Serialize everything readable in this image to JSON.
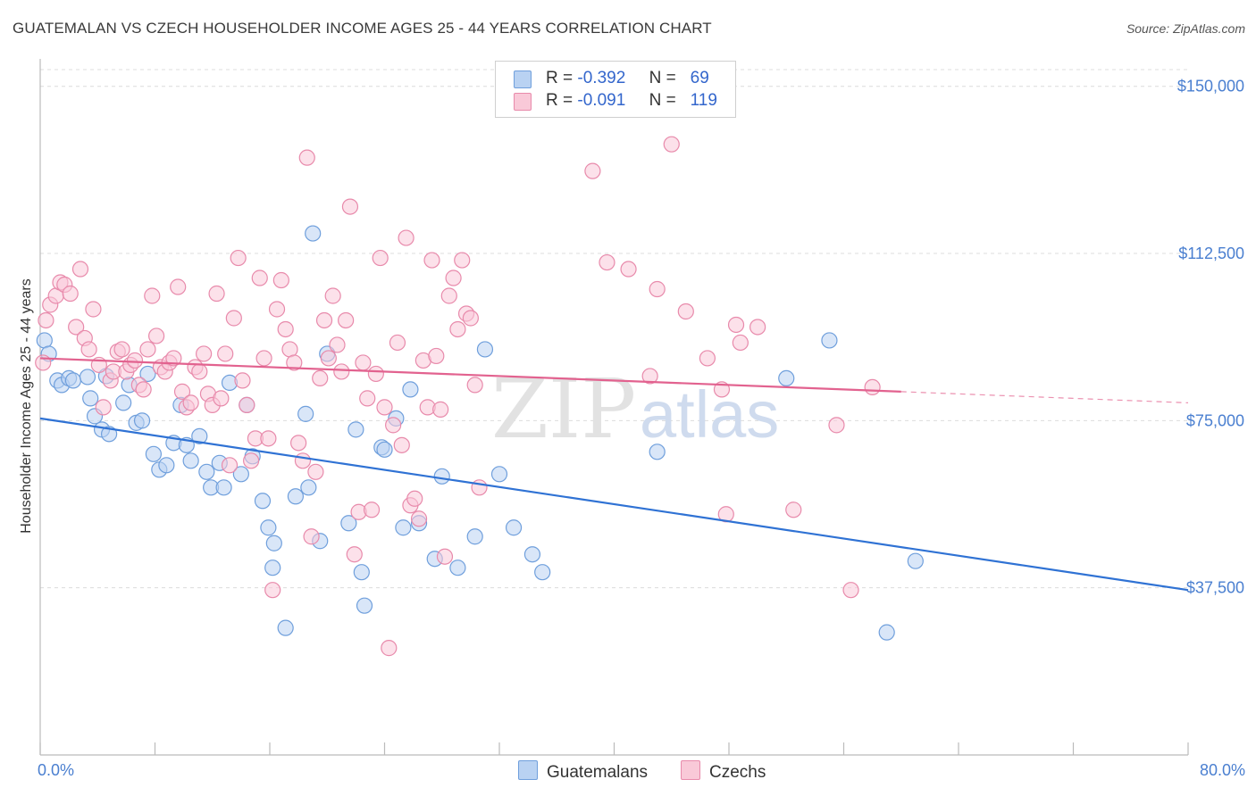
{
  "title": "GUATEMALAN VS CZECH HOUSEHOLDER INCOME AGES 25 - 44 YEARS CORRELATION CHART",
  "source": "Source: ZipAtlas.com",
  "watermark": {
    "zip": "ZIP",
    "atlas": "atlas"
  },
  "legend": {
    "rows": [
      {
        "r_label": "R =",
        "r_value": "-0.392",
        "n_label": "N =",
        "n_value": "69",
        "color": "#b9d2f2",
        "border": "#6f9fdc"
      },
      {
        "r_label": "R =",
        "r_value": "-0.091",
        "n_label": "N =",
        "n_value": "119",
        "color": "#f9c9d8",
        "border": "#e88aab"
      }
    ]
  },
  "bottom_legend": [
    {
      "label": "Guatemalans",
      "color": "#b9d2f2",
      "border": "#6f9fdc"
    },
    {
      "label": "Czechs",
      "color": "#f9c9d8",
      "border": "#e88aab"
    }
  ],
  "chart_data": {
    "type": "scatter",
    "title": "GUATEMALAN VS CZECH HOUSEHOLDER INCOME AGES 25 - 44 YEARS CORRELATION CHART",
    "xlabel": "",
    "ylabel": "Householder Income Ages 25 - 44 years",
    "xlim": [
      0,
      80
    ],
    "ylim": [
      0,
      153750
    ],
    "x_tick_labels": [
      {
        "value": 0,
        "label": "0.0%"
      },
      {
        "value": 80,
        "label": "80.0%"
      }
    ],
    "y_ticks": [
      {
        "value": 37500,
        "label": "$37,500"
      },
      {
        "value": 75000,
        "label": "$75,000"
      },
      {
        "value": 112500,
        "label": "$112,500"
      },
      {
        "value": 150000,
        "label": "$150,000"
      }
    ],
    "grid": true,
    "legend_position": "top-center",
    "series": [
      {
        "name": "Guatemalans",
        "color": "#6f9fdc",
        "fill": "#b9d2f2",
        "line_color": "#2f72d4",
        "trend": {
          "x": [
            0,
            80
          ],
          "y": [
            75500,
            37000
          ]
        },
        "points": [
          [
            0.3,
            93000
          ],
          [
            0.6,
            90000
          ],
          [
            1.2,
            84000
          ],
          [
            1.5,
            83000
          ],
          [
            2.0,
            84500
          ],
          [
            2.3,
            84000
          ],
          [
            3.3,
            84800
          ],
          [
            3.5,
            80000
          ],
          [
            3.8,
            76000
          ],
          [
            4.3,
            73000
          ],
          [
            4.8,
            72000
          ],
          [
            4.6,
            85000
          ],
          [
            5.8,
            79000
          ],
          [
            6.2,
            83000
          ],
          [
            6.7,
            74500
          ],
          [
            7.1,
            75000
          ],
          [
            7.5,
            85500
          ],
          [
            7.9,
            67500
          ],
          [
            8.3,
            64000
          ],
          [
            8.8,
            65000
          ],
          [
            9.3,
            70000
          ],
          [
            9.8,
            78500
          ],
          [
            10.2,
            69500
          ],
          [
            10.5,
            66000
          ],
          [
            11.1,
            71500
          ],
          [
            11.6,
            63500
          ],
          [
            11.9,
            60000
          ],
          [
            12.5,
            65500
          ],
          [
            12.8,
            60000
          ],
          [
            13.2,
            83500
          ],
          [
            14.0,
            63000
          ],
          [
            14.4,
            78500
          ],
          [
            14.8,
            67000
          ],
          [
            15.5,
            57000
          ],
          [
            15.9,
            51000
          ],
          [
            16.3,
            47500
          ],
          [
            16.2,
            42000
          ],
          [
            17.1,
            28500
          ],
          [
            17.8,
            58000
          ],
          [
            18.7,
            60000
          ],
          [
            18.5,
            76500
          ],
          [
            19.0,
            117000
          ],
          [
            19.5,
            48000
          ],
          [
            20.0,
            90000
          ],
          [
            21.5,
            52000
          ],
          [
            22.0,
            73000
          ],
          [
            22.4,
            41000
          ],
          [
            22.6,
            33500
          ],
          [
            23.8,
            69000
          ],
          [
            24.0,
            68500
          ],
          [
            24.8,
            75500
          ],
          [
            25.3,
            51000
          ],
          [
            25.8,
            82000
          ],
          [
            26.4,
            52000
          ],
          [
            27.5,
            44000
          ],
          [
            28.0,
            62500
          ],
          [
            29.1,
            42000
          ],
          [
            30.3,
            49000
          ],
          [
            31.0,
            91000
          ],
          [
            32.0,
            63000
          ],
          [
            33.0,
            51000
          ],
          [
            34.3,
            45000
          ],
          [
            35.0,
            41000
          ],
          [
            43.0,
            68000
          ],
          [
            52.0,
            84500
          ],
          [
            55.0,
            93000
          ],
          [
            59.0,
            27500
          ],
          [
            61.0,
            43500
          ]
        ]
      },
      {
        "name": "Czechs",
        "color": "#e88aab",
        "fill": "#f9c9d8",
        "line_color": "#e2628f",
        "trend": {
          "x": [
            0,
            60
          ],
          "y": [
            89000,
            81500
          ]
        },
        "trend_dashed": {
          "x": [
            60,
            80
          ],
          "y": [
            81500,
            79000
          ]
        },
        "points": [
          [
            0.2,
            88000
          ],
          [
            0.4,
            97500
          ],
          [
            0.7,
            101000
          ],
          [
            1.1,
            103000
          ],
          [
            1.4,
            106000
          ],
          [
            1.7,
            105500
          ],
          [
            2.1,
            103500
          ],
          [
            2.5,
            96000
          ],
          [
            2.8,
            109000
          ],
          [
            3.1,
            93500
          ],
          [
            3.4,
            91000
          ],
          [
            3.7,
            100000
          ],
          [
            4.1,
            87500
          ],
          [
            4.4,
            78000
          ],
          [
            4.9,
            84000
          ],
          [
            5.1,
            86000
          ],
          [
            5.4,
            90500
          ],
          [
            5.7,
            91000
          ],
          [
            6.0,
            86000
          ],
          [
            6.3,
            87500
          ],
          [
            6.6,
            88500
          ],
          [
            6.9,
            83000
          ],
          [
            7.2,
            82000
          ],
          [
            7.5,
            91000
          ],
          [
            7.8,
            103000
          ],
          [
            8.1,
            94000
          ],
          [
            8.4,
            87000
          ],
          [
            8.7,
            86000
          ],
          [
            9.0,
            88000
          ],
          [
            9.3,
            89000
          ],
          [
            9.6,
            105000
          ],
          [
            9.9,
            81500
          ],
          [
            10.2,
            78000
          ],
          [
            10.5,
            79000
          ],
          [
            10.8,
            87000
          ],
          [
            11.1,
            86000
          ],
          [
            11.4,
            90000
          ],
          [
            11.7,
            81000
          ],
          [
            12.0,
            78500
          ],
          [
            12.3,
            103500
          ],
          [
            12.6,
            80000
          ],
          [
            12.9,
            90000
          ],
          [
            13.2,
            65000
          ],
          [
            13.5,
            98000
          ],
          [
            13.8,
            111500
          ],
          [
            14.1,
            84000
          ],
          [
            14.4,
            78500
          ],
          [
            14.7,
            66000
          ],
          [
            15.0,
            71000
          ],
          [
            15.3,
            107000
          ],
          [
            15.6,
            89000
          ],
          [
            15.9,
            71000
          ],
          [
            16.2,
            37000
          ],
          [
            16.5,
            100000
          ],
          [
            16.8,
            106500
          ],
          [
            17.1,
            95500
          ],
          [
            17.4,
            91000
          ],
          [
            17.7,
            88000
          ],
          [
            18.0,
            70000
          ],
          [
            18.3,
            66000
          ],
          [
            18.6,
            134000
          ],
          [
            18.9,
            49000
          ],
          [
            19.2,
            63500
          ],
          [
            19.5,
            84500
          ],
          [
            19.8,
            97500
          ],
          [
            20.1,
            89000
          ],
          [
            20.4,
            103000
          ],
          [
            20.7,
            92000
          ],
          [
            21.0,
            86000
          ],
          [
            21.3,
            97500
          ],
          [
            21.6,
            123000
          ],
          [
            21.9,
            45000
          ],
          [
            22.2,
            54500
          ],
          [
            22.5,
            88000
          ],
          [
            22.8,
            80000
          ],
          [
            23.1,
            55000
          ],
          [
            23.4,
            85500
          ],
          [
            23.7,
            111500
          ],
          [
            24.0,
            78000
          ],
          [
            24.3,
            24000
          ],
          [
            24.6,
            74000
          ],
          [
            24.9,
            92500
          ],
          [
            25.2,
            69500
          ],
          [
            25.5,
            116000
          ],
          [
            25.8,
            56000
          ],
          [
            26.1,
            57500
          ],
          [
            26.4,
            53000
          ],
          [
            26.7,
            88500
          ],
          [
            27.0,
            78000
          ],
          [
            27.3,
            111000
          ],
          [
            27.6,
            89500
          ],
          [
            27.9,
            77500
          ],
          [
            28.2,
            44500
          ],
          [
            28.5,
            103000
          ],
          [
            28.8,
            107000
          ],
          [
            29.1,
            95500
          ],
          [
            29.4,
            111000
          ],
          [
            29.7,
            99000
          ],
          [
            30.0,
            98000
          ],
          [
            30.3,
            83000
          ],
          [
            30.6,
            60000
          ],
          [
            38.5,
            131000
          ],
          [
            39.5,
            110500
          ],
          [
            41.0,
            109000
          ],
          [
            42.5,
            85000
          ],
          [
            43.0,
            104500
          ],
          [
            44.0,
            137000
          ],
          [
            45.0,
            99500
          ],
          [
            46.5,
            89000
          ],
          [
            47.5,
            82000
          ],
          [
            47.8,
            54000
          ],
          [
            48.5,
            96500
          ],
          [
            48.8,
            92500
          ],
          [
            50.0,
            96000
          ],
          [
            52.5,
            55000
          ],
          [
            55.5,
            74000
          ],
          [
            56.5,
            37000
          ],
          [
            58.0,
            82500
          ]
        ]
      }
    ]
  }
}
